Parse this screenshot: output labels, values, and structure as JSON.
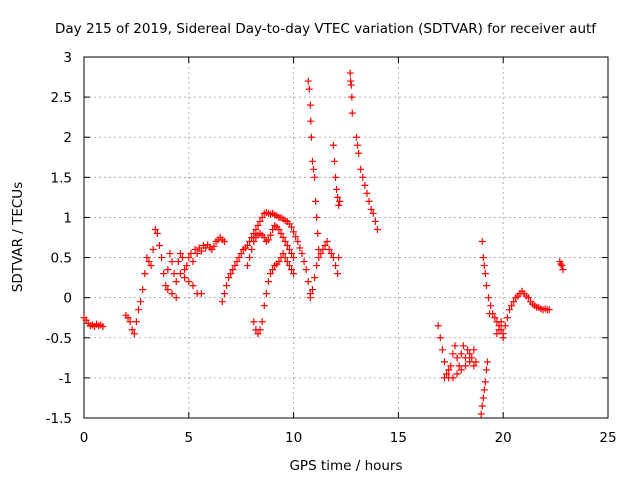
{
  "chart_data": {
    "type": "scatter",
    "title": "Day 215 of 2019, Sidereal Day-to-day VTEC variation (SDTVAR) for receiver autf",
    "xlabel": "GPS time / hours",
    "ylabel": "SDTVAR / TECUs",
    "xlim": [
      0,
      25
    ],
    "ylim": [
      -1.5,
      3
    ],
    "xticks": [
      0,
      5,
      10,
      15,
      20,
      25
    ],
    "yticks": [
      -1.5,
      -1,
      -0.5,
      0,
      0.5,
      1,
      1.5,
      2,
      2.5,
      3
    ],
    "grid": true,
    "marker": "+",
    "series": [
      {
        "name": "SDTVAR",
        "color": "#ff0000",
        "points": [
          [
            0.0,
            -0.25
          ],
          [
            0.1,
            -0.28
          ],
          [
            0.2,
            -0.32
          ],
          [
            0.3,
            -0.35
          ],
          [
            0.4,
            -0.34
          ],
          [
            0.5,
            -0.36
          ],
          [
            0.6,
            -0.33
          ],
          [
            0.7,
            -0.35
          ],
          [
            0.8,
            -0.34
          ],
          [
            0.9,
            -0.36
          ],
          [
            2.0,
            -0.22
          ],
          [
            2.1,
            -0.25
          ],
          [
            2.2,
            -0.3
          ],
          [
            2.3,
            -0.4
          ],
          [
            2.4,
            -0.45
          ],
          [
            2.5,
            -0.3
          ],
          [
            2.6,
            -0.15
          ],
          [
            2.7,
            -0.05
          ],
          [
            2.8,
            0.1
          ],
          [
            2.9,
            0.3
          ],
          [
            3.0,
            0.5
          ],
          [
            3.1,
            0.45
          ],
          [
            3.2,
            0.4
          ],
          [
            3.3,
            0.6
          ],
          [
            3.4,
            0.85
          ],
          [
            3.5,
            0.8
          ],
          [
            3.6,
            0.65
          ],
          [
            3.7,
            0.5
          ],
          [
            3.8,
            0.3
          ],
          [
            3.9,
            0.15
          ],
          [
            4.0,
            0.35
          ],
          [
            4.1,
            0.55
          ],
          [
            4.2,
            0.45
          ],
          [
            4.3,
            0.3
          ],
          [
            4.4,
            0.2
          ],
          [
            4.5,
            0.45
          ],
          [
            4.6,
            0.55
          ],
          [
            4.7,
            0.5
          ],
          [
            4.8,
            0.35
          ],
          [
            4.9,
            0.4
          ],
          [
            5.0,
            0.5
          ],
          [
            5.1,
            0.55
          ],
          [
            5.2,
            0.45
          ],
          [
            5.3,
            0.6
          ],
          [
            5.4,
            0.55
          ],
          [
            5.5,
            0.62
          ],
          [
            5.6,
            0.58
          ],
          [
            5.7,
            0.65
          ],
          [
            5.8,
            0.62
          ],
          [
            5.9,
            0.66
          ],
          [
            6.0,
            0.62
          ],
          [
            6.1,
            0.6
          ],
          [
            6.2,
            0.64
          ],
          [
            6.3,
            0.7
          ],
          [
            6.4,
            0.72
          ],
          [
            6.5,
            0.75
          ],
          [
            6.6,
            0.72
          ],
          [
            6.7,
            0.7
          ],
          [
            4.0,
            0.1
          ],
          [
            4.2,
            0.05
          ],
          [
            4.4,
            0.0
          ],
          [
            4.6,
            0.3
          ],
          [
            4.8,
            0.25
          ],
          [
            5.0,
            0.2
          ],
          [
            5.2,
            0.15
          ],
          [
            5.4,
            0.05
          ],
          [
            5.6,
            0.05
          ],
          [
            6.6,
            -0.05
          ],
          [
            6.7,
            0.05
          ],
          [
            6.8,
            0.15
          ],
          [
            6.9,
            0.25
          ],
          [
            7.0,
            0.3
          ],
          [
            7.1,
            0.35
          ],
          [
            7.2,
            0.4
          ],
          [
            7.3,
            0.45
          ],
          [
            7.4,
            0.5
          ],
          [
            7.5,
            0.55
          ],
          [
            7.6,
            0.6
          ],
          [
            7.7,
            0.62
          ],
          [
            7.8,
            0.65
          ],
          [
            7.9,
            0.7
          ],
          [
            8.0,
            0.75
          ],
          [
            8.1,
            0.8
          ],
          [
            8.2,
            0.85
          ],
          [
            8.3,
            0.9
          ],
          [
            8.4,
            0.95
          ],
          [
            8.5,
            1.0
          ],
          [
            8.6,
            1.05
          ],
          [
            8.7,
            1.06
          ],
          [
            8.8,
            1.05
          ],
          [
            8.9,
            1.04
          ],
          [
            9.0,
            1.05
          ],
          [
            9.1,
            1.03
          ],
          [
            9.2,
            1.02
          ],
          [
            9.3,
            1.0
          ],
          [
            9.4,
            1.0
          ],
          [
            9.5,
            0.98
          ],
          [
            9.6,
            0.96
          ],
          [
            9.7,
            0.95
          ],
          [
            9.8,
            0.92
          ],
          [
            9.9,
            0.88
          ],
          [
            10.0,
            0.82
          ],
          [
            10.1,
            0.76
          ],
          [
            10.2,
            0.7
          ],
          [
            10.3,
            0.62
          ],
          [
            10.4,
            0.55
          ],
          [
            10.5,
            0.45
          ],
          [
            10.6,
            0.35
          ],
          [
            10.7,
            0.2
          ],
          [
            10.8,
            0.05
          ],
          [
            7.8,
            0.4
          ],
          [
            7.9,
            0.5
          ],
          [
            8.0,
            0.6
          ],
          [
            8.1,
            0.7
          ],
          [
            8.2,
            0.75
          ],
          [
            8.3,
            0.78
          ],
          [
            8.4,
            0.8
          ],
          [
            8.5,
            0.78
          ],
          [
            8.6,
            0.75
          ],
          [
            8.7,
            0.7
          ],
          [
            8.8,
            0.72
          ],
          [
            8.9,
            0.78
          ],
          [
            9.0,
            0.85
          ],
          [
            9.1,
            0.9
          ],
          [
            9.2,
            0.88
          ],
          [
            9.3,
            0.85
          ],
          [
            9.4,
            0.8
          ],
          [
            9.5,
            0.75
          ],
          [
            9.6,
            0.7
          ],
          [
            9.7,
            0.65
          ],
          [
            9.8,
            0.6
          ],
          [
            9.9,
            0.55
          ],
          [
            10.0,
            0.5
          ],
          [
            8.1,
            -0.3
          ],
          [
            8.2,
            -0.4
          ],
          [
            8.3,
            -0.45
          ],
          [
            8.4,
            -0.4
          ],
          [
            8.5,
            -0.3
          ],
          [
            8.6,
            -0.1
          ],
          [
            8.7,
            0.05
          ],
          [
            8.8,
            0.2
          ],
          [
            8.9,
            0.3
          ],
          [
            9.0,
            0.35
          ],
          [
            9.1,
            0.4
          ],
          [
            9.2,
            0.42
          ],
          [
            9.3,
            0.45
          ],
          [
            9.4,
            0.5
          ],
          [
            9.5,
            0.55
          ],
          [
            9.6,
            0.5
          ],
          [
            9.7,
            0.45
          ],
          [
            9.8,
            0.4
          ],
          [
            9.9,
            0.35
          ],
          [
            10.0,
            0.3
          ],
          [
            10.7,
            2.7
          ],
          [
            10.75,
            2.6
          ],
          [
            10.8,
            2.4
          ],
          [
            10.82,
            2.2
          ],
          [
            10.85,
            2.0
          ],
          [
            10.9,
            1.7
          ],
          [
            10.95,
            1.6
          ],
          [
            11.0,
            1.5
          ],
          [
            11.05,
            1.2
          ],
          [
            11.1,
            1.0
          ],
          [
            11.15,
            0.8
          ],
          [
            11.2,
            0.6
          ],
          [
            10.8,
            0.0
          ],
          [
            10.9,
            0.1
          ],
          [
            11.0,
            0.25
          ],
          [
            11.1,
            0.4
          ],
          [
            11.2,
            0.5
          ],
          [
            11.3,
            0.55
          ],
          [
            11.4,
            0.6
          ],
          [
            11.5,
            0.65
          ],
          [
            11.6,
            0.7
          ],
          [
            11.7,
            0.6
          ],
          [
            11.8,
            0.55
          ],
          [
            11.9,
            0.5
          ],
          [
            12.0,
            0.4
          ],
          [
            12.1,
            0.3
          ],
          [
            12.15,
            0.5
          ],
          [
            11.9,
            1.9
          ],
          [
            11.95,
            1.7
          ],
          [
            12.0,
            1.5
          ],
          [
            12.05,
            1.35
          ],
          [
            12.1,
            1.25
          ],
          [
            12.15,
            1.15
          ],
          [
            12.2,
            1.2
          ],
          [
            12.7,
            2.8
          ],
          [
            12.72,
            2.7
          ],
          [
            12.75,
            2.65
          ],
          [
            12.78,
            2.5
          ],
          [
            12.8,
            2.3
          ],
          [
            13.0,
            2.0
          ],
          [
            13.05,
            1.9
          ],
          [
            13.1,
            1.8
          ],
          [
            13.2,
            1.6
          ],
          [
            13.3,
            1.5
          ],
          [
            13.4,
            1.4
          ],
          [
            13.5,
            1.3
          ],
          [
            13.6,
            1.2
          ],
          [
            13.7,
            1.1
          ],
          [
            13.8,
            1.05
          ],
          [
            13.9,
            0.95
          ],
          [
            14.0,
            0.85
          ],
          [
            16.9,
            -0.35
          ],
          [
            17.0,
            -0.5
          ],
          [
            17.1,
            -0.65
          ],
          [
            17.2,
            -0.8
          ],
          [
            17.3,
            -0.95
          ],
          [
            17.4,
            -1.0
          ],
          [
            17.5,
            -0.85
          ],
          [
            17.6,
            -0.7
          ],
          [
            17.7,
            -0.6
          ],
          [
            17.8,
            -0.75
          ],
          [
            17.9,
            -0.85
          ],
          [
            18.0,
            -0.7
          ],
          [
            18.1,
            -0.6
          ],
          [
            18.2,
            -0.75
          ],
          [
            18.3,
            -0.65
          ],
          [
            18.4,
            -0.8
          ],
          [
            18.5,
            -0.75
          ],
          [
            18.6,
            -0.85
          ],
          [
            18.7,
            -0.8
          ],
          [
            17.2,
            -1.0
          ],
          [
            17.4,
            -0.9
          ],
          [
            17.6,
            -1.0
          ],
          [
            17.8,
            -0.95
          ],
          [
            18.0,
            -0.9
          ],
          [
            18.2,
            -0.85
          ],
          [
            18.4,
            -0.7
          ],
          [
            18.6,
            -0.65
          ],
          [
            19.0,
            0.7
          ],
          [
            19.05,
            0.5
          ],
          [
            19.1,
            0.4
          ],
          [
            19.15,
            0.3
          ],
          [
            19.2,
            0.15
          ],
          [
            19.3,
            0.0
          ],
          [
            19.35,
            -0.2
          ],
          [
            19.4,
            -0.1
          ],
          [
            19.5,
            -0.2
          ],
          [
            19.6,
            -0.25
          ],
          [
            19.7,
            -0.3
          ],
          [
            19.8,
            -0.35
          ],
          [
            19.9,
            -0.4
          ],
          [
            20.0,
            -0.5
          ],
          [
            18.95,
            -1.45
          ],
          [
            19.0,
            -1.35
          ],
          [
            19.05,
            -1.25
          ],
          [
            19.1,
            -1.15
          ],
          [
            19.15,
            -1.05
          ],
          [
            19.2,
            -0.9
          ],
          [
            19.25,
            -0.8
          ],
          [
            19.7,
            -0.45
          ],
          [
            19.8,
            -0.4
          ],
          [
            19.9,
            -0.3
          ],
          [
            20.0,
            -0.45
          ],
          [
            20.1,
            -0.35
          ],
          [
            20.2,
            -0.25
          ],
          [
            20.3,
            -0.15
          ],
          [
            20.4,
            -0.1
          ],
          [
            20.5,
            -0.05
          ],
          [
            20.6,
            0.0
          ],
          [
            20.7,
            0.02
          ],
          [
            20.8,
            0.05
          ],
          [
            20.9,
            0.08
          ],
          [
            21.0,
            0.05
          ],
          [
            21.1,
            0.02
          ],
          [
            21.2,
            0.0
          ],
          [
            21.3,
            -0.05
          ],
          [
            21.4,
            -0.08
          ],
          [
            21.5,
            -0.1
          ],
          [
            21.6,
            -0.12
          ],
          [
            21.7,
            -0.12
          ],
          [
            21.8,
            -0.14
          ],
          [
            21.9,
            -0.15
          ],
          [
            22.0,
            -0.14
          ],
          [
            22.1,
            -0.15
          ],
          [
            22.2,
            -0.15
          ],
          [
            22.7,
            0.45
          ],
          [
            22.75,
            0.42
          ],
          [
            22.8,
            0.4
          ],
          [
            22.85,
            0.35
          ]
        ]
      }
    ]
  }
}
